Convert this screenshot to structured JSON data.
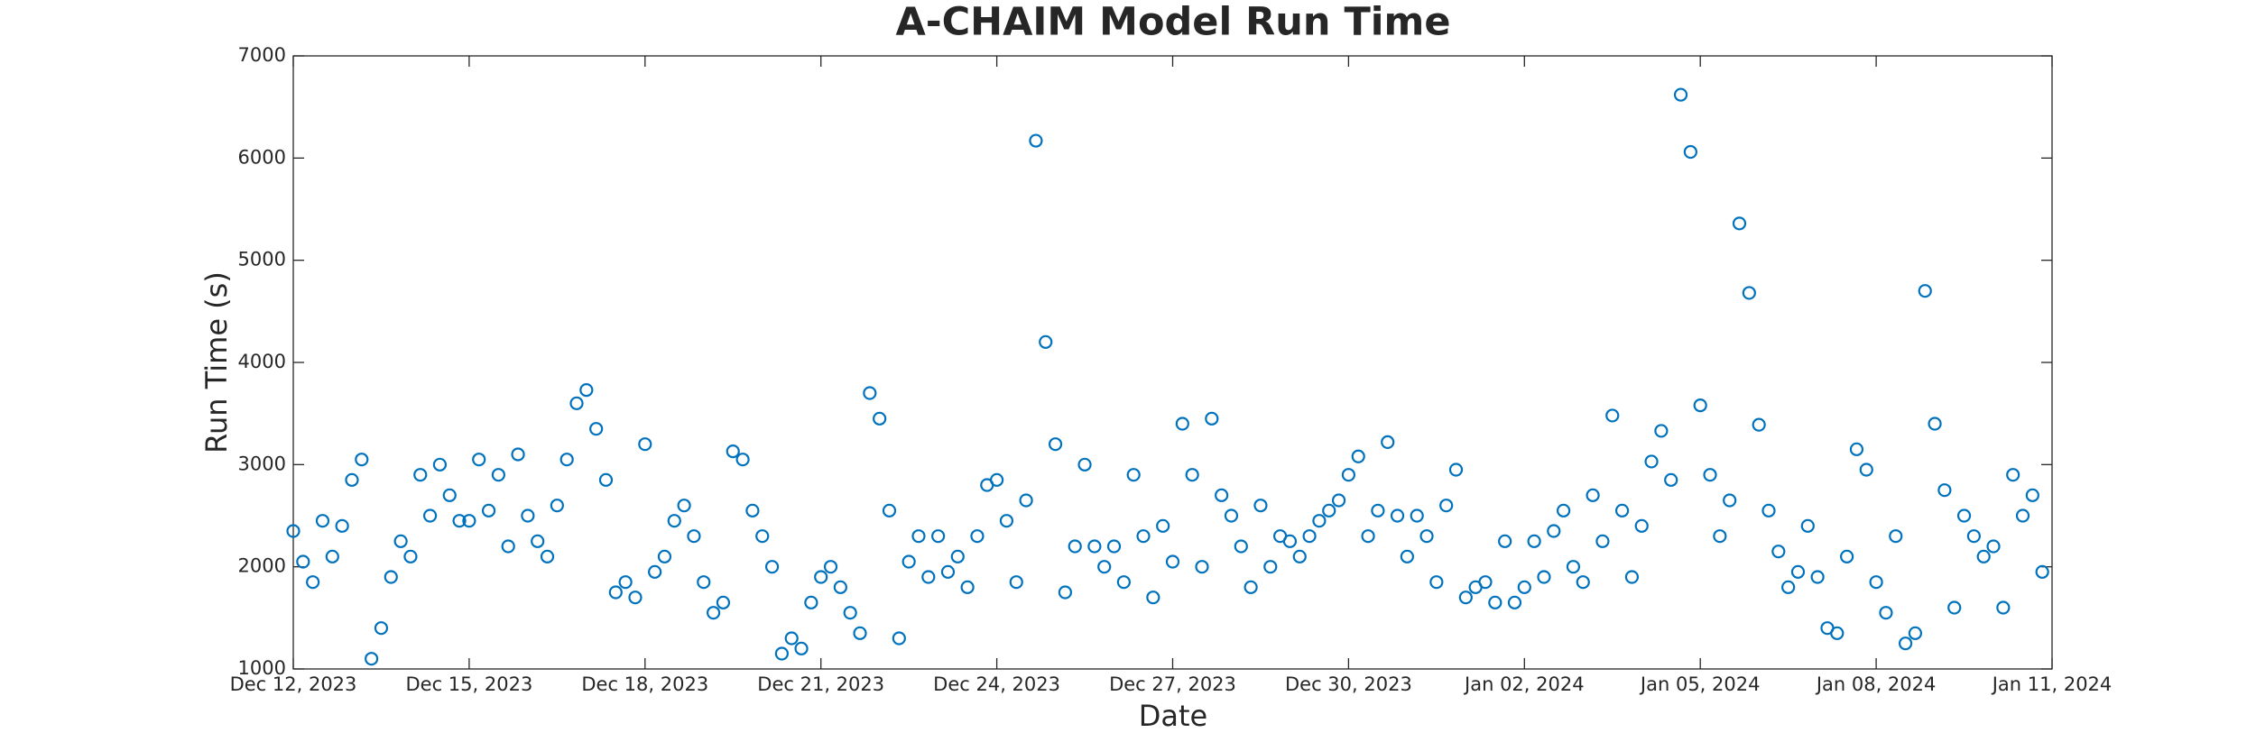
{
  "chart_data": {
    "type": "scatter",
    "title": "A-CHAIM Model Run Time",
    "xlabel": "Date",
    "ylabel": "Run Time (s)",
    "x": [
      "2023-12-12T00:00",
      "2023-12-12T04:00",
      "2023-12-12T08:00",
      "2023-12-12T12:00",
      "2023-12-12T16:00",
      "2023-12-12T20:00",
      "2023-12-13T00:00",
      "2023-12-13T04:00",
      "2023-12-13T08:00",
      "2023-12-13T12:00",
      "2023-12-13T16:00",
      "2023-12-13T20:00",
      "2023-12-14T00:00",
      "2023-12-14T04:00",
      "2023-12-14T08:00",
      "2023-12-14T12:00",
      "2023-12-14T16:00",
      "2023-12-14T20:00",
      "2023-12-15T00:00",
      "2023-12-15T04:00",
      "2023-12-15T08:00",
      "2023-12-15T12:00",
      "2023-12-15T16:00",
      "2023-12-15T20:00",
      "2023-12-16T00:00",
      "2023-12-16T04:00",
      "2023-12-16T08:00",
      "2023-12-16T12:00",
      "2023-12-16T16:00",
      "2023-12-16T20:00",
      "2023-12-17T00:00",
      "2023-12-17T04:00",
      "2023-12-17T08:00",
      "2023-12-17T12:00",
      "2023-12-17T16:00",
      "2023-12-17T20:00",
      "2023-12-18T00:00",
      "2023-12-18T04:00",
      "2023-12-18T08:00",
      "2023-12-18T12:00",
      "2023-12-18T16:00",
      "2023-12-18T20:00",
      "2023-12-19T00:00",
      "2023-12-19T04:00",
      "2023-12-19T08:00",
      "2023-12-19T12:00",
      "2023-12-19T16:00",
      "2023-12-19T20:00",
      "2023-12-20T00:00",
      "2023-12-20T04:00",
      "2023-12-20T08:00",
      "2023-12-20T12:00",
      "2023-12-20T16:00",
      "2023-12-20T20:00",
      "2023-12-21T00:00",
      "2023-12-21T04:00",
      "2023-12-21T08:00",
      "2023-12-21T12:00",
      "2023-12-21T16:00",
      "2023-12-21T20:00",
      "2023-12-22T00:00",
      "2023-12-22T04:00",
      "2023-12-22T08:00",
      "2023-12-22T12:00",
      "2023-12-22T16:00",
      "2023-12-22T20:00",
      "2023-12-23T00:00",
      "2023-12-23T04:00",
      "2023-12-23T08:00",
      "2023-12-23T12:00",
      "2023-12-23T16:00",
      "2023-12-23T20:00",
      "2023-12-24T00:00",
      "2023-12-24T04:00",
      "2023-12-24T08:00",
      "2023-12-24T12:00",
      "2023-12-24T16:00",
      "2023-12-24T20:00",
      "2023-12-25T00:00",
      "2023-12-25T04:00",
      "2023-12-25T08:00",
      "2023-12-25T12:00",
      "2023-12-25T16:00",
      "2023-12-25T20:00",
      "2023-12-26T00:00",
      "2023-12-26T04:00",
      "2023-12-26T08:00",
      "2023-12-26T12:00",
      "2023-12-26T16:00",
      "2023-12-26T20:00",
      "2023-12-27T00:00",
      "2023-12-27T04:00",
      "2023-12-27T08:00",
      "2023-12-27T12:00",
      "2023-12-27T16:00",
      "2023-12-27T20:00",
      "2023-12-28T00:00",
      "2023-12-28T04:00",
      "2023-12-28T08:00",
      "2023-12-28T12:00",
      "2023-12-28T16:00",
      "2023-12-28T20:00",
      "2023-12-29T00:00",
      "2023-12-29T04:00",
      "2023-12-29T08:00",
      "2023-12-29T12:00",
      "2023-12-29T16:00",
      "2023-12-29T20:00",
      "2023-12-30T00:00",
      "2023-12-30T04:00",
      "2023-12-30T08:00",
      "2023-12-30T12:00",
      "2023-12-30T16:00",
      "2023-12-30T20:00",
      "2023-12-31T00:00",
      "2023-12-31T04:00",
      "2023-12-31T08:00",
      "2023-12-31T12:00",
      "2023-12-31T16:00",
      "2023-12-31T20:00",
      "2024-01-01T00:00",
      "2024-01-01T04:00",
      "2024-01-01T08:00",
      "2024-01-01T12:00",
      "2024-01-01T16:00",
      "2024-01-01T20:00",
      "2024-01-02T00:00",
      "2024-01-02T04:00",
      "2024-01-02T08:00",
      "2024-01-02T12:00",
      "2024-01-02T16:00",
      "2024-01-02T20:00",
      "2024-01-03T00:00",
      "2024-01-03T04:00",
      "2024-01-03T08:00",
      "2024-01-03T12:00",
      "2024-01-03T16:00",
      "2024-01-03T20:00",
      "2024-01-04T00:00",
      "2024-01-04T04:00",
      "2024-01-04T08:00",
      "2024-01-04T12:00",
      "2024-01-04T16:00",
      "2024-01-04T20:00",
      "2024-01-05T00:00",
      "2024-01-05T04:00",
      "2024-01-05T08:00",
      "2024-01-05T12:00",
      "2024-01-05T16:00",
      "2024-01-05T20:00",
      "2024-01-06T00:00",
      "2024-01-06T04:00",
      "2024-01-06T08:00",
      "2024-01-06T12:00",
      "2024-01-06T16:00",
      "2024-01-06T20:00",
      "2024-01-07T00:00",
      "2024-01-07T04:00",
      "2024-01-07T08:00",
      "2024-01-07T12:00",
      "2024-01-07T16:00",
      "2024-01-07T20:00",
      "2024-01-08T00:00",
      "2024-01-08T04:00",
      "2024-01-08T08:00",
      "2024-01-08T12:00",
      "2024-01-08T16:00",
      "2024-01-08T20:00",
      "2024-01-09T00:00",
      "2024-01-09T04:00",
      "2024-01-09T08:00",
      "2024-01-09T12:00",
      "2024-01-09T16:00",
      "2024-01-09T20:00",
      "2024-01-10T00:00",
      "2024-01-10T04:00",
      "2024-01-10T08:00",
      "2024-01-10T12:00",
      "2024-01-10T16:00",
      "2024-01-10T20:00"
    ],
    "values": [
      2350,
      2050,
      1850,
      2450,
      2100,
      2400,
      2850,
      3050,
      1100,
      1400,
      1900,
      2250,
      2100,
      2900,
      2500,
      3000,
      2700,
      2450,
      2450,
      3050,
      2550,
      2900,
      2200,
      3100,
      2500,
      2250,
      2100,
      2600,
      3050,
      3600,
      3730,
      3350,
      2850,
      1750,
      1850,
      1700,
      3200,
      1950,
      2100,
      2450,
      2600,
      2300,
      1850,
      1550,
      1650,
      3130,
      3050,
      2550,
      2300,
      2000,
      1150,
      1300,
      1200,
      1650,
      1900,
      2000,
      1800,
      1550,
      1350,
      3700,
      3450,
      2550,
      1300,
      2050,
      2300,
      1900,
      2300,
      1950,
      2100,
      1800,
      2300,
      2800,
      2850,
      2450,
      1850,
      2650,
      6170,
      4200,
      3200,
      1750,
      2200,
      3000,
      2200,
      2000,
      2200,
      1850,
      2900,
      2300,
      1700,
      2400,
      2050,
      3400,
      2900,
      2000,
      3450,
      2700,
      2500,
      2200,
      1800,
      2600,
      2000,
      2300,
      2250,
      2100,
      2300,
      2450,
      2550,
      2650,
      2900,
      3080,
      2300,
      2550,
      3220,
      2500,
      2100,
      2500,
      2300,
      1850,
      2600,
      2950,
      1700,
      1800,
      1850,
      1650,
      2250,
      1650,
      1800,
      2250,
      1900,
      2350,
      2550,
      2000,
      1850,
      2700,
      2250,
      3480,
      2550,
      1900,
      2400,
      3030,
      3330,
      2850,
      6620,
      6060,
      3580,
      2900,
      2300,
      2650,
      5360,
      4680,
      3390,
      2550,
      2150,
      1800,
      1950,
      2400,
      1900,
      1400,
      1350,
      2100,
      3150,
      2950,
      1850,
      1550,
      2300,
      1250,
      1350,
      4700,
      3400,
      2750,
      1600,
      2500,
      2300,
      2100,
      2200,
      1600,
      2900,
      2500,
      2700,
      1950
    ],
    "color": "#0072bd",
    "xlim": [
      "2023-12-12",
      "2024-01-11"
    ],
    "xticks": [
      {
        "value": "2023-12-12",
        "label": "Dec 12, 2023"
      },
      {
        "value": "2023-12-15",
        "label": "Dec 15, 2023"
      },
      {
        "value": "2023-12-18",
        "label": "Dec 18, 2023"
      },
      {
        "value": "2023-12-21",
        "label": "Dec 21, 2023"
      },
      {
        "value": "2023-12-24",
        "label": "Dec 24, 2023"
      },
      {
        "value": "2023-12-27",
        "label": "Dec 27, 2023"
      },
      {
        "value": "2023-12-30",
        "label": "Dec 30, 2023"
      },
      {
        "value": "2024-01-02",
        "label": "Jan 02, 2024"
      },
      {
        "value": "2024-01-05",
        "label": "Jan 05, 2024"
      },
      {
        "value": "2024-01-08",
        "label": "Jan 08, 2024"
      },
      {
        "value": "2024-01-11",
        "label": "Jan 11, 2024"
      }
    ],
    "ylim": [
      1000,
      7000
    ],
    "yticks": [
      1000,
      2000,
      3000,
      4000,
      5000,
      6000,
      7000
    ],
    "grid": false
  }
}
